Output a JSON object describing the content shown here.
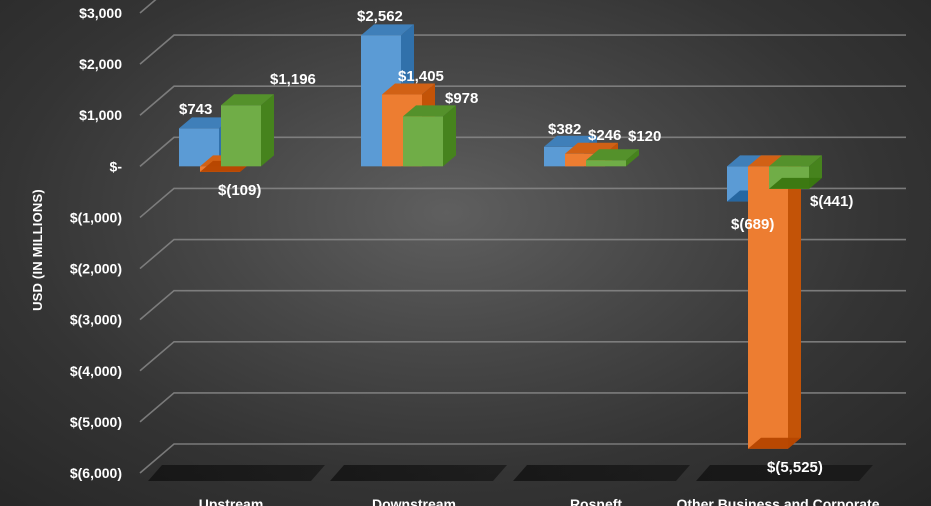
{
  "chart_data": {
    "type": "bar",
    "categories": [
      "Upstream",
      "Downstream",
      "Rosneft",
      "Other Business and Corporate"
    ],
    "series": [
      {
        "values": [
          743,
          2562,
          382,
          -689
        ],
        "color": "#5b9bd5"
      },
      {
        "values": [
          -109,
          1405,
          246,
          -5525
        ],
        "color": "#ed7d31"
      },
      {
        "values": [
          1196,
          978,
          120,
          -441
        ],
        "color": "#70ad47"
      }
    ],
    "data_labels": [
      [
        "$743",
        "$2,562",
        "$382",
        "$(689)"
      ],
      [
        "$(109)",
        "$1,405",
        "$246",
        "$(5,525)"
      ],
      [
        "$1,196",
        "$978",
        "$120",
        "$(441)"
      ]
    ],
    "title": "",
    "xlabel": "",
    "ylabel": "USD (IN MILLIONS)",
    "ylim": [
      -6000,
      3000
    ],
    "yticks": [
      3000,
      2000,
      1000,
      0,
      -1000,
      -2000,
      -3000,
      -4000,
      -5000,
      -6000
    ],
    "ytick_labels": [
      "$3,000",
      "$2,000",
      "$1,000",
      "$-",
      "$(1,000)",
      "$(2,000)",
      "$(3,000)",
      "$(4,000)",
      "$(5,000)",
      "$(6,000)"
    ],
    "grid": true,
    "three_d": true
  }
}
